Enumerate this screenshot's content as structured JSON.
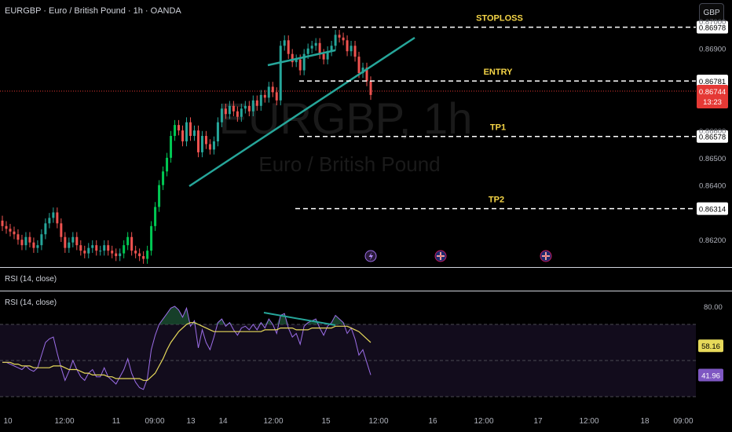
{
  "header": {
    "title": "EURGBP · Euro / British Pound · 1h · OANDA",
    "currency_button": "GBP"
  },
  "watermark": {
    "symbol": "EURGBP, 1h",
    "name": "Euro / British Pound"
  },
  "colors": {
    "up": "#26a69a",
    "up_bright": "#00c853",
    "down": "#ef5350",
    "level_line": "#ffffff",
    "level_text": "#f5d547",
    "trend": "#26a69a",
    "rsi": "#9c6ee8",
    "rsi_ma": "#e6d95a",
    "last_price": "#e53935"
  },
  "chart_data": [
    {
      "type": "candlestick",
      "y_ticks": [
        "0.86900",
        "0.86500",
        "0.86400",
        "0.86200"
      ],
      "y_ticks_partially_hidden": [
        "0.87000",
        "0.86600"
      ],
      "x_labels": [
        "10",
        "12:00",
        "11",
        "09:00",
        "13",
        "14",
        "12:00",
        "15",
        "12:00",
        "16",
        "12:00",
        "17",
        "12:00",
        "18",
        "09:00"
      ],
      "levels": [
        {
          "label": "STOPLOSS",
          "price": "0.86978"
        },
        {
          "label": "ENTRY",
          "price": "0.86781"
        },
        {
          "label": "TP1",
          "price": "0.86578"
        },
        {
          "label": "TP2",
          "price": "0.86314"
        }
      ],
      "last_price": "0.86744",
      "countdown": "13:23",
      "trendlines": [
        {
          "from": [
            "13",
            0.8646
          ],
          "to": [
            "15 18:00",
            0.8703
          ]
        },
        {
          "from": [
            "14 12:00",
            0.869
          ],
          "to": [
            "15 03:00",
            0.8695
          ]
        }
      ],
      "closes": [
        0.8625,
        0.8624,
        0.8623,
        0.8622,
        0.862,
        0.8618,
        0.8621,
        0.8619,
        0.8617,
        0.8618,
        0.8622,
        0.8626,
        0.8628,
        0.863,
        0.8626,
        0.8621,
        0.8617,
        0.8619,
        0.8621,
        0.8618,
        0.8616,
        0.8615,
        0.8617,
        0.8618,
        0.8616,
        0.8616,
        0.8618,
        0.8616,
        0.8615,
        0.8614,
        0.8615,
        0.8618,
        0.8621,
        0.8616,
        0.8615,
        0.8614,
        0.8613,
        0.8616,
        0.8625,
        0.8632,
        0.864,
        0.8645,
        0.865,
        0.8658,
        0.8662,
        0.866,
        0.8656,
        0.8663,
        0.8658,
        0.866,
        0.8652,
        0.8658,
        0.8655,
        0.8653,
        0.8656,
        0.8663,
        0.8668,
        0.8666,
        0.8669,
        0.8667,
        0.8665,
        0.8668,
        0.8669,
        0.8667,
        0.8671,
        0.8669,
        0.8673,
        0.8672,
        0.8676,
        0.8674,
        0.8671,
        0.8691,
        0.8693,
        0.8688,
        0.8685,
        0.8686,
        0.8682,
        0.8688,
        0.869,
        0.8691,
        0.8692,
        0.8688,
        0.8686,
        0.8689,
        0.8691,
        0.8695,
        0.8694,
        0.8693,
        0.8689,
        0.8691,
        0.8687,
        0.8681,
        0.8683,
        0.8678,
        0.8673
      ]
    },
    {
      "type": "line",
      "title": "RSI (14, close)",
      "y_ticks": [
        "80.00"
      ],
      "series": [
        {
          "values": [
            49,
            49,
            48,
            47,
            46,
            45,
            47,
            45,
            44,
            46,
            53,
            60,
            62,
            63,
            54,
            46,
            39,
            44,
            50,
            45,
            41,
            39,
            43,
            45,
            41,
            41,
            46,
            41,
            39,
            37,
            41,
            45,
            51,
            43,
            38,
            35,
            34,
            40,
            56,
            64,
            70,
            73,
            76,
            79,
            80,
            78,
            74,
            79,
            69,
            72,
            57,
            67,
            60,
            56,
            63,
            71,
            73,
            69,
            71,
            67,
            64,
            68,
            69,
            67,
            70,
            67,
            71,
            68,
            73,
            70,
            65,
            75,
            76,
            68,
            63,
            65,
            59,
            69,
            71,
            72,
            73,
            68,
            64,
            69,
            71,
            75,
            73,
            71,
            65,
            68,
            62,
            53,
            56,
            49,
            42
          ]
        },
        {
          "values": [
            49,
            49,
            49,
            48,
            48,
            47,
            47,
            47,
            46,
            46,
            46,
            46,
            46,
            47,
            47,
            47,
            46,
            45,
            45,
            45,
            44,
            43,
            43,
            42,
            42,
            42,
            42,
            41,
            41,
            40,
            40,
            40,
            40,
            40,
            40,
            40,
            39,
            39,
            41,
            43,
            47,
            51,
            56,
            60,
            63,
            66,
            68,
            70,
            71,
            71,
            70,
            69,
            68,
            67,
            66,
            66,
            66,
            66,
            66,
            66,
            66,
            66,
            66,
            66,
            66,
            66,
            66,
            67,
            67,
            67,
            67,
            68,
            68,
            68,
            68,
            67,
            67,
            67,
            67,
            68,
            68,
            68,
            68,
            68,
            68,
            69,
            69,
            69,
            69,
            68,
            67,
            66,
            64,
            62,
            60
          ]
        }
      ],
      "last_values": [
        "58.16",
        "41.96"
      ],
      "divergence_line": {
        "from": [
          "14 12:00",
          75.5
        ],
        "to": [
          "15 06:00",
          70.5
        ]
      }
    }
  ]
}
